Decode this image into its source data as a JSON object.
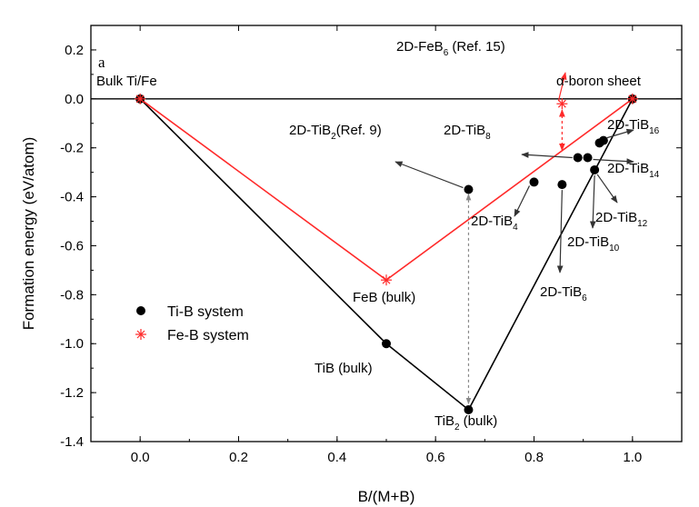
{
  "chart_data": {
    "type": "scatter",
    "panel_label": "a",
    "xlabel": "B/(M+B)",
    "ylabel": "Formation energy (eV/atom)",
    "xlim": [
      -0.1,
      1.1
    ],
    "ylim": [
      -1.4,
      0.3
    ],
    "x_ticks": [
      0.0,
      0.2,
      0.4,
      0.6,
      0.8,
      1.0
    ],
    "x_tick_labels": [
      "0.0",
      "0.2",
      "0.4",
      "0.6",
      "0.8",
      "1.0"
    ],
    "y_ticks": [
      0.2,
      0.0,
      -0.2,
      -0.4,
      -0.6,
      -0.8,
      -1.0,
      -1.2,
      -1.4
    ],
    "y_tick_labels": [
      "0.2",
      "0.0",
      "-0.2",
      "-0.4",
      "-0.6",
      "-0.8",
      "-1.0",
      "-1.2",
      "-1.4"
    ],
    "zero_line": true,
    "grid": false,
    "legend_position": "lower-left",
    "colors": {
      "ti_b": "#000000",
      "fe_b": "#ff2a2a",
      "connector": "#888888"
    },
    "series": [
      {
        "name": "Ti-B system",
        "marker": "circle",
        "hull": [
          [
            0.0,
            0.0
          ],
          [
            0.5,
            -1.0
          ],
          [
            0.667,
            -1.27
          ],
          [
            1.0,
            0.0
          ]
        ],
        "points": [
          [
            0.0,
            0.0
          ],
          [
            0.5,
            -1.0
          ],
          [
            0.667,
            -1.27
          ],
          [
            1.0,
            0.0
          ],
          [
            0.667,
            -0.37
          ],
          [
            0.8,
            -0.34
          ],
          [
            0.857,
            -0.35
          ],
          [
            0.889,
            -0.24
          ],
          [
            0.909,
            -0.24
          ],
          [
            0.923,
            -0.29
          ],
          [
            0.933,
            -0.18
          ],
          [
            0.941,
            -0.17
          ]
        ]
      },
      {
        "name": "Fe-B system",
        "marker": "asterisk",
        "hull": [
          [
            0.0,
            0.0
          ],
          [
            0.5,
            -0.74
          ],
          [
            1.0,
            0.0
          ]
        ],
        "points": [
          [
            0.0,
            0.0
          ],
          [
            0.5,
            -0.74
          ],
          [
            0.857,
            -0.02
          ],
          [
            1.0,
            0.0
          ]
        ]
      }
    ],
    "annotations": [
      {
        "id": "bulk",
        "base": "Bulk Ti/Fe",
        "sub": "",
        "tail": ""
      },
      {
        "id": "alpha",
        "base": "α-boron sheet",
        "sub": "",
        "tail": ""
      },
      {
        "id": "feb6",
        "base": "2D-FeB",
        "sub": "6",
        "tail": " (Ref. 15)"
      },
      {
        "id": "tib2ref",
        "base": "2D-TiB",
        "sub": "2",
        "tail": "(Ref. 9)"
      },
      {
        "id": "tib8",
        "base": "2D-TiB",
        "sub": "8",
        "tail": ""
      },
      {
        "id": "tib16",
        "base": "2D-TiB",
        "sub": "16",
        "tail": ""
      },
      {
        "id": "tib14",
        "base": "2D-TiB",
        "sub": "14",
        "tail": ""
      },
      {
        "id": "tib12",
        "base": "2D-TiB",
        "sub": "12",
        "tail": ""
      },
      {
        "id": "tib10",
        "base": "2D-TiB",
        "sub": "10",
        "tail": ""
      },
      {
        "id": "tib4",
        "base": "2D-TiB",
        "sub": "4",
        "tail": ""
      },
      {
        "id": "tib6",
        "base": "2D-TiB",
        "sub": "6",
        "tail": ""
      },
      {
        "id": "feb",
        "base": "FeB (bulk)",
        "sub": "",
        "tail": ""
      },
      {
        "id": "tib",
        "base": "TiB (bulk)",
        "sub": "",
        "tail": ""
      },
      {
        "id": "tib2",
        "base": "TiB",
        "sub": "2",
        "tail": " (bulk)"
      }
    ]
  }
}
